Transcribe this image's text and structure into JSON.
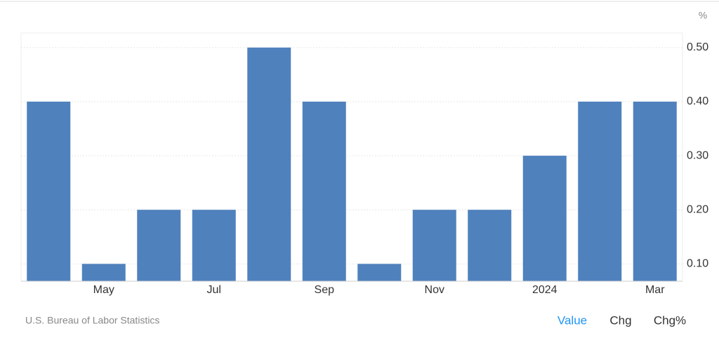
{
  "chart_data": {
    "type": "bar",
    "unit": "%",
    "categories": [
      null,
      "May",
      null,
      "Jul",
      null,
      "Sep",
      null,
      "Nov",
      null,
      "2024",
      null,
      "Mar"
    ],
    "values": [
      0.4,
      0.1,
      0.2,
      0.2,
      0.5,
      0.4,
      0.1,
      0.2,
      0.2,
      0.3,
      0.4,
      0.4
    ],
    "color": "#4f81bd",
    "ylim": [
      0.068,
      0.527
    ],
    "yticks": [
      {
        "value": 0.1,
        "label": "0.10"
      },
      {
        "value": 0.2,
        "label": "0.20"
      },
      {
        "value": 0.3,
        "label": "0.30"
      },
      {
        "value": 0.4,
        "label": "0.40"
      },
      {
        "value": 0.5,
        "label": "0.50"
      }
    ],
    "grid": true
  },
  "footer": {
    "source": "U.S. Bureau of Labor Statistics",
    "tabs": [
      "Value",
      "Chg",
      "Chg%"
    ],
    "active_tab": 0
  }
}
